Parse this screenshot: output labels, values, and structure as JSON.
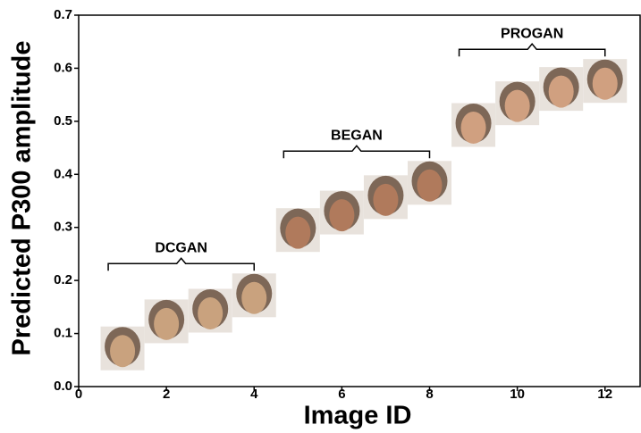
{
  "chart_data": {
    "type": "scatter",
    "x_label": "Image ID",
    "y_label": "Predicted P300 amplitude",
    "xlim": [
      0,
      12.8
    ],
    "ylim": [
      0,
      0.7
    ],
    "xticks": [
      0,
      2,
      4,
      6,
      8,
      10,
      12
    ],
    "yticks": [
      {
        "value": 0,
        "label": "0.0"
      },
      0.1,
      0.2,
      0.3,
      0.4,
      0.5,
      0.6,
      0.7
    ],
    "series": [
      {
        "name": "DCGAN",
        "color": "#c9a27e",
        "x": [
          1,
          2,
          3,
          4
        ],
        "values": [
          0.072,
          0.123,
          0.143,
          0.172
        ]
      },
      {
        "name": "BEGAN",
        "color": "#b07a5c",
        "x": [
          5,
          6,
          7,
          8
        ],
        "values": [
          0.295,
          0.328,
          0.357,
          0.384
        ]
      },
      {
        "name": "PROGAN",
        "color": "#d0a080",
        "x": [
          9,
          10,
          11,
          12
        ],
        "values": [
          0.493,
          0.534,
          0.561,
          0.576
        ]
      }
    ]
  }
}
